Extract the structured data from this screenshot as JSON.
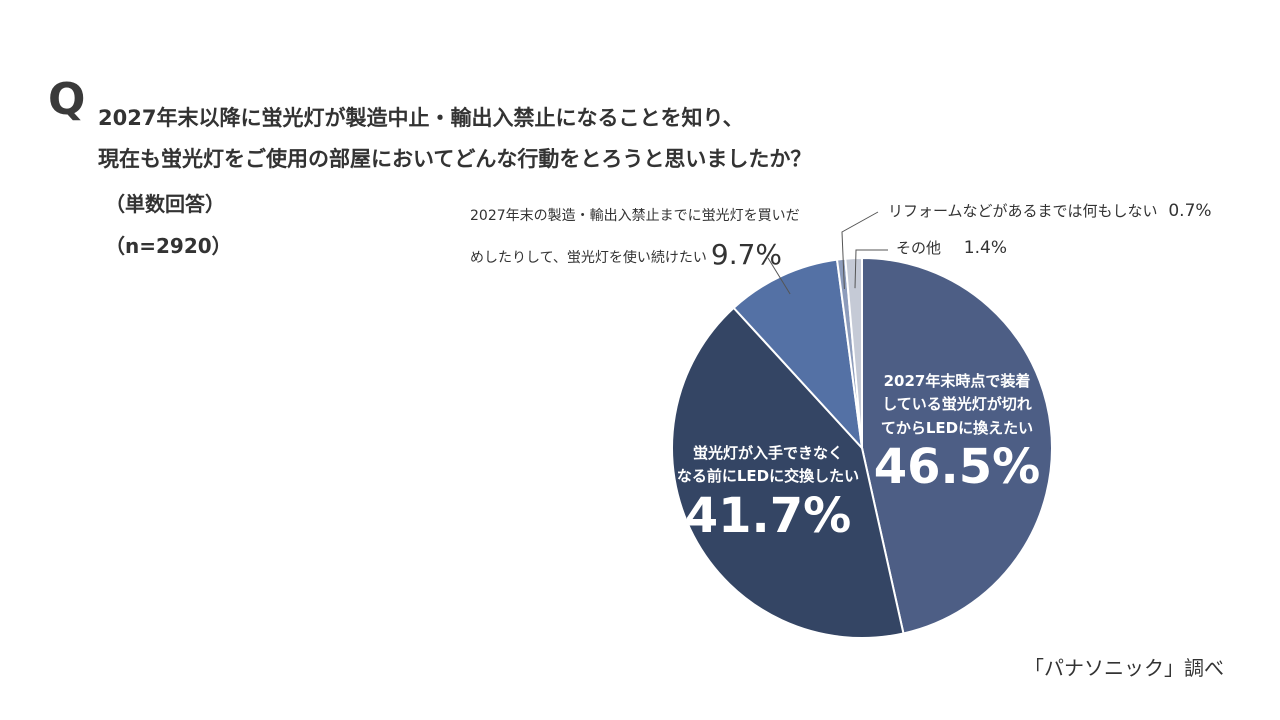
{
  "question": {
    "mark": "Q",
    "line1": "2027年末以降に蛍光灯が製造中止・輸出入禁止になることを知り、",
    "line2": "現在も蛍光灯をご使用の部屋においてどんな行動をとろうと思いましたか？",
    "note": "（単数回答）",
    "sample": "（n=2920）"
  },
  "source": "「パナソニック」調べ",
  "chart_data": {
    "type": "pie",
    "title": "",
    "start_angle_deg": 0,
    "direction": "clockwise",
    "slices": [
      {
        "label_lines": [
          "2027年末時点で装着",
          "している蛍光灯が切れ",
          "てからLEDに換えたい"
        ],
        "value": 46.5,
        "value_label": "46.5%",
        "color": "#4d5e85"
      },
      {
        "label_lines": [
          "蛍光灯が入手できなく",
          "なる前にLEDに交換したい"
        ],
        "value": 41.7,
        "value_label": "41.7%",
        "color": "#344564"
      },
      {
        "label_lines": [
          "2027年末の製造・輸出入禁止までに蛍光灯を買いだ",
          "めしたりして、蛍光灯を使い続けたい"
        ],
        "value": 9.7,
        "value_label": "9.7%",
        "color": "#5471a5"
      },
      {
        "label_lines": [
          "リフォームなどがあるまでは何もしない"
        ],
        "value": 0.7,
        "value_label": "0.7%",
        "color": "#8d9cbb"
      },
      {
        "label_lines": [
          "その他"
        ],
        "value": 1.4,
        "value_label": "1.4%",
        "color": "#c5cad6"
      }
    ]
  }
}
